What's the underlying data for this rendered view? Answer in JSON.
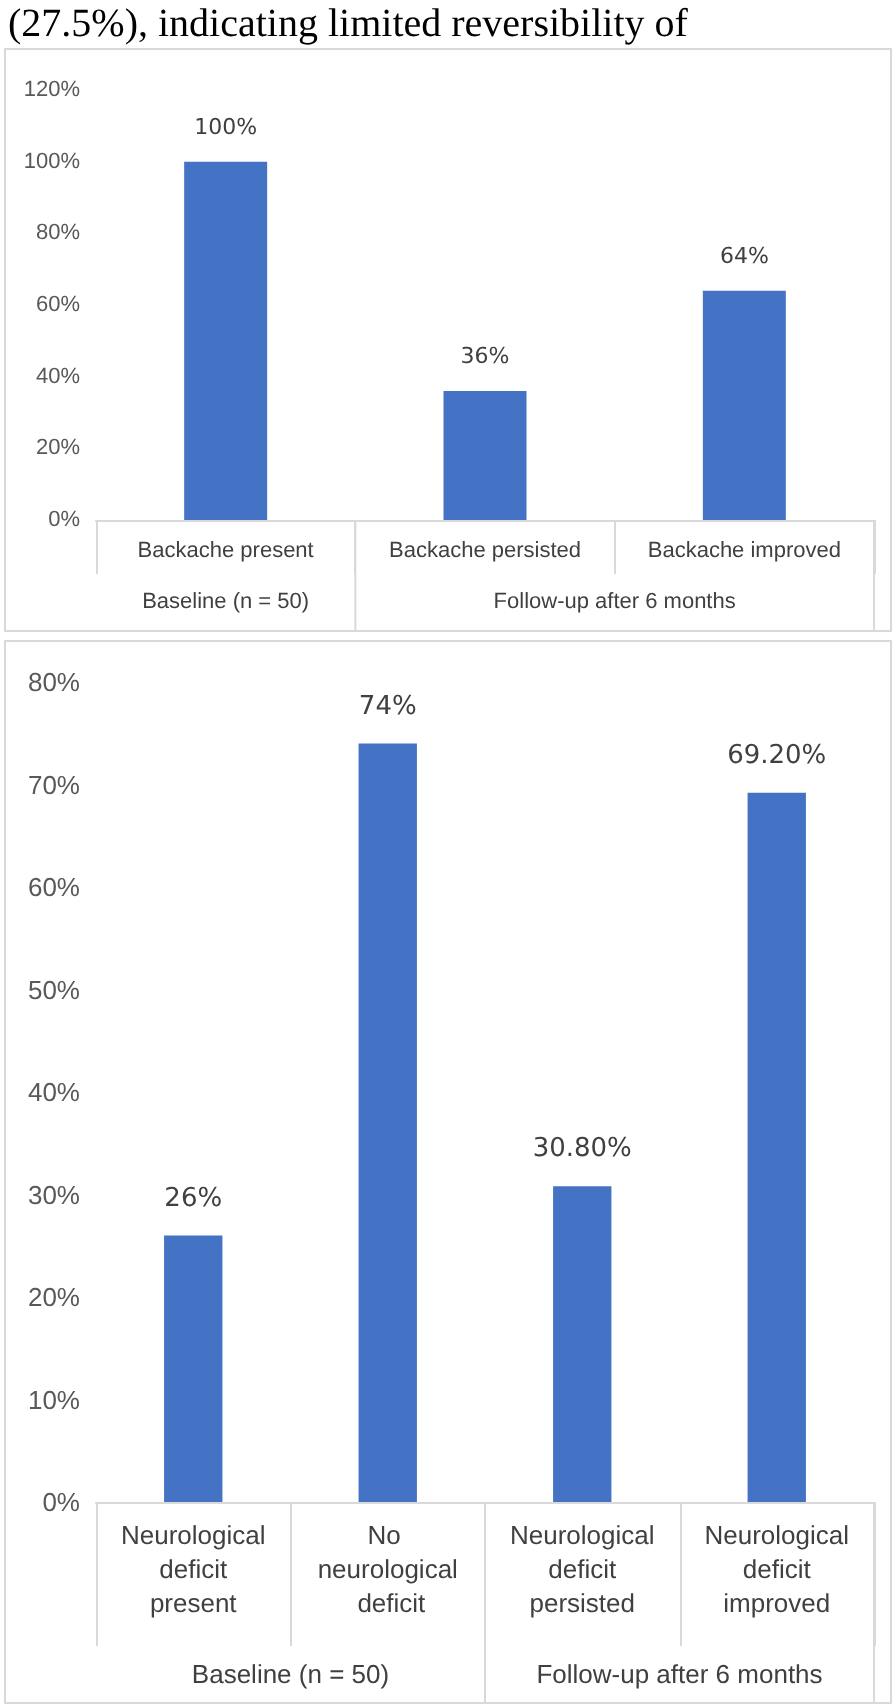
{
  "chart_data": [
    {
      "type": "bar",
      "categories": [
        "Backache present",
        "Backache persisted",
        "Backache improved"
      ],
      "values": [
        100,
        36,
        64
      ],
      "color": "#4472c4",
      "value_labels": [
        "100%",
        "36%",
        "64%"
      ],
      "ylim": [
        0,
        120
      ],
      "yticks": [
        {
          "value": 0,
          "label": "0%"
        },
        {
          "value": 20,
          "label": "20%"
        },
        {
          "value": 40,
          "label": "40%"
        },
        {
          "value": 60,
          "label": "60%"
        },
        {
          "value": 80,
          "label": "80%"
        },
        {
          "value": 100,
          "label": "100%"
        },
        {
          "value": 120,
          "label": "120%"
        }
      ],
      "grid": false,
      "annotations": [
        "(27.5%), indicating limited reversibility of",
        "Baseline (n = 50)",
        "Follow-up after 6 months"
      ]
    },
    {
      "type": "bar",
      "categories": [
        "Neurological deficit present",
        "No neurological deficit",
        "Neurological deficit persisted",
        "Neurological deficit improved"
      ],
      "values": [
        26,
        74,
        30.8,
        69.2
      ],
      "color": "#4472c4",
      "value_labels": [
        "26%",
        "74%",
        "30.80%",
        "69.20%"
      ],
      "ylim": [
        0,
        80
      ],
      "yticks": [
        {
          "value": 0,
          "label": "0%"
        },
        {
          "value": 10,
          "label": "10%"
        },
        {
          "value": 20,
          "label": "20%"
        },
        {
          "value": 30,
          "label": "30%"
        },
        {
          "value": 40,
          "label": "40%"
        },
        {
          "value": 50,
          "label": "50%"
        },
        {
          "value": 60,
          "label": "60%"
        },
        {
          "value": 70,
          "label": "70%"
        },
        {
          "value": 80,
          "label": "80%"
        }
      ],
      "grid": false,
      "annotations": [
        "Baseline (n = 50)",
        "Follow-up after 6 months"
      ]
    }
  ]
}
